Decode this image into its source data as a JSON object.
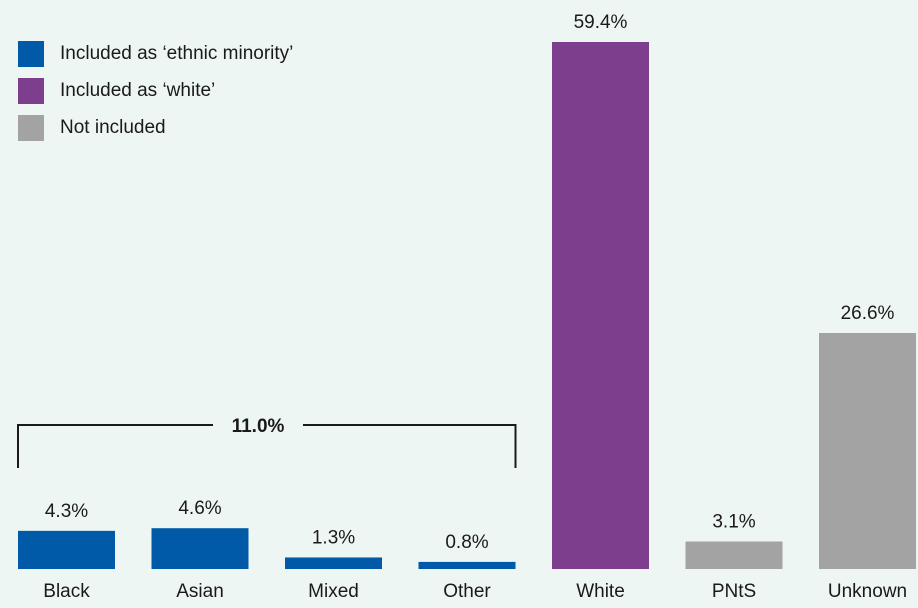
{
  "legend": {
    "items": [
      {
        "label": "Included as ‘ethnic minority’",
        "color": "#005aa7"
      },
      {
        "label": "Included as ‘white’",
        "color": "#7c3e8d"
      },
      {
        "label": "Not included",
        "color": "#a3a3a3"
      }
    ]
  },
  "bracket": {
    "label": "11.0%",
    "covers": [
      "Black",
      "Asian",
      "Mixed",
      "Other"
    ]
  },
  "chart_data": {
    "type": "bar",
    "title": "",
    "xlabel": "",
    "ylabel": "",
    "ylim": [
      0,
      59.4
    ],
    "grid": false,
    "legend_position": "top-left",
    "categories": [
      "Black",
      "Asian",
      "Mixed",
      "Other",
      "White",
      "PNtS",
      "Unknown"
    ],
    "values": [
      4.3,
      4.6,
      1.3,
      0.8,
      59.4,
      3.1,
      26.6
    ],
    "value_labels": [
      "4.3%",
      "4.6%",
      "1.3%",
      "0.8%",
      "59.4%",
      "3.1%",
      "26.6%"
    ],
    "groups": [
      "Included as ‘ethnic minority’",
      "Included as ‘ethnic minority’",
      "Included as ‘ethnic minority’",
      "Included as ‘ethnic minority’",
      "Included as ‘white’",
      "Not included",
      "Not included"
    ],
    "colors": [
      "#005aa7",
      "#005aa7",
      "#005aa7",
      "#005aa7",
      "#7c3e8d",
      "#a3a3a3",
      "#a3a3a3"
    ]
  }
}
